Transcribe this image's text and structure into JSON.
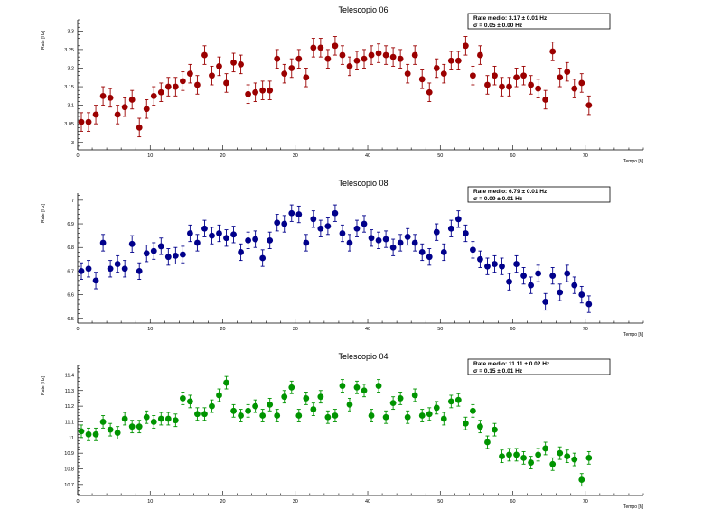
{
  "chart_data": [
    {
      "type": "scatter",
      "title": "Telescopio 06",
      "xlabel": "Tempo [h]",
      "ylabel": "Rate [Hz]",
      "xlim": [
        0,
        78
      ],
      "ylim": [
        2.98,
        3.33
      ],
      "xticks": [
        0,
        10,
        20,
        30,
        40,
        50,
        60,
        70
      ],
      "yticks": [
        3,
        3.05,
        3.1,
        3.15,
        3.2,
        3.25,
        3.3
      ],
      "color": "#9b0000",
      "stats": [
        "Rate medio: 3.17 ± 0.01 Hz",
        "σ = 0.05 ± 0.00 Hz"
      ],
      "x": [
        0.5,
        1.5,
        2.5,
        3.5,
        4.5,
        5.5,
        6.5,
        7.5,
        8.5,
        9.5,
        10.5,
        11.5,
        12.5,
        13.5,
        14.5,
        15.5,
        16.5,
        17.5,
        18.5,
        19.5,
        20.5,
        21.5,
        22.5,
        23.5,
        24.5,
        25.5,
        26.5,
        27.5,
        28.5,
        29.5,
        30.5,
        31.5,
        32.5,
        33.5,
        34.5,
        35.5,
        36.5,
        37.5,
        38.5,
        39.5,
        40.5,
        41.5,
        42.5,
        43.5,
        44.5,
        45.5,
        46.5,
        47.5,
        48.5,
        49.5,
        50.5,
        51.5,
        52.5,
        53.5,
        54.5,
        55.5,
        56.5,
        57.5,
        58.5,
        59.5,
        60.5,
        61.5,
        62.5,
        63.5,
        64.5,
        65.5,
        66.5,
        67.5,
        68.5,
        69.5,
        70.5
      ],
      "y": [
        3.055,
        3.055,
        3.075,
        3.125,
        3.12,
        3.075,
        3.095,
        3.115,
        3.04,
        3.09,
        3.125,
        3.135,
        3.15,
        3.15,
        3.165,
        3.185,
        3.155,
        3.235,
        3.18,
        3.205,
        3.16,
        3.215,
        3.21,
        3.13,
        3.135,
        3.14,
        3.14,
        3.225,
        3.185,
        3.2,
        3.225,
        3.175,
        3.255,
        3.255,
        3.225,
        3.26,
        3.235,
        3.205,
        3.22,
        3.225,
        3.235,
        3.24,
        3.235,
        3.23,
        3.225,
        3.185,
        3.235,
        3.17,
        3.135,
        3.2,
        3.185,
        3.22,
        3.22,
        3.26,
        3.18,
        3.235,
        3.155,
        3.18,
        3.15,
        3.15,
        3.175,
        3.18,
        3.155,
        3.145,
        3.115,
        3.245,
        3.175,
        3.19,
        3.145,
        3.16,
        3.1
      ],
      "err": 0.025
    },
    {
      "type": "scatter",
      "title": "Telescopio 08",
      "xlabel": "Tempo [h]",
      "ylabel": "Rate [Hz]",
      "xlim": [
        0,
        78
      ],
      "ylim": [
        6.48,
        7.03
      ],
      "xticks": [
        0,
        10,
        20,
        30,
        40,
        50,
        60,
        70
      ],
      "yticks": [
        6.5,
        6.6,
        6.7,
        6.8,
        6.9,
        7
      ],
      "color": "#00008b",
      "stats": [
        "Rate medio: 6.79 ± 0.01 Hz",
        "σ = 0.09 ± 0.01 Hz"
      ],
      "x": [
        0.5,
        1.5,
        2.5,
        3.5,
        4.5,
        5.5,
        6.5,
        7.5,
        8.5,
        9.5,
        10.5,
        11.5,
        12.5,
        13.5,
        14.5,
        15.5,
        16.5,
        17.5,
        18.5,
        19.5,
        20.5,
        21.5,
        22.5,
        23.5,
        24.5,
        25.5,
        26.5,
        27.5,
        28.5,
        29.5,
        30.5,
        31.5,
        32.5,
        33.5,
        34.5,
        35.5,
        36.5,
        37.5,
        38.5,
        39.5,
        40.5,
        41.5,
        42.5,
        43.5,
        44.5,
        45.5,
        46.5,
        47.5,
        48.5,
        49.5,
        50.5,
        51.5,
        52.5,
        53.5,
        54.5,
        55.5,
        56.5,
        57.5,
        58.5,
        59.5,
        60.5,
        61.5,
        62.5,
        63.5,
        64.5,
        65.5,
        66.5,
        67.5,
        68.5,
        69.5,
        70.5
      ],
      "y": [
        6.7,
        6.71,
        6.66,
        6.82,
        6.71,
        6.73,
        6.71,
        6.815,
        6.7,
        6.775,
        6.785,
        6.805,
        6.76,
        6.765,
        6.77,
        6.86,
        6.82,
        6.88,
        6.85,
        6.86,
        6.84,
        6.855,
        6.78,
        6.83,
        6.835,
        6.755,
        6.83,
        6.905,
        6.9,
        6.945,
        6.94,
        6.82,
        6.92,
        6.88,
        6.89,
        6.945,
        6.86,
        6.82,
        6.88,
        6.9,
        6.84,
        6.83,
        6.835,
        6.8,
        6.82,
        6.845,
        6.82,
        6.78,
        6.76,
        6.865,
        6.78,
        6.88,
        6.92,
        6.86,
        6.79,
        6.75,
        6.72,
        6.73,
        6.72,
        6.655,
        6.73,
        6.68,
        6.64,
        6.69,
        6.57,
        6.68,
        6.61,
        6.69,
        6.64,
        6.6,
        6.56
      ],
      "err": 0.035
    },
    {
      "type": "scatter",
      "title": "Telescopio 04",
      "xlabel": "Tempo [h]",
      "ylabel": "Rate [Hz]",
      "xlim": [
        0,
        78
      ],
      "ylim": [
        10.63,
        11.46
      ],
      "xticks": [
        0,
        10,
        20,
        30,
        40,
        50,
        60,
        70
      ],
      "yticks": [
        10.7,
        10.8,
        10.9,
        11,
        11.1,
        11.2,
        11.3,
        11.4
      ],
      "color": "#009400",
      "stats": [
        "Rate medio: 11.11 ± 0.02 Hz",
        "σ = 0.15 ± 0.01 Hz"
      ],
      "x": [
        0.5,
        1.5,
        2.5,
        3.5,
        4.5,
        5.5,
        6.5,
        7.5,
        8.5,
        9.5,
        10.5,
        11.5,
        12.5,
        13.5,
        14.5,
        15.5,
        16.5,
        17.5,
        18.5,
        19.5,
        20.5,
        21.5,
        22.5,
        23.5,
        24.5,
        25.5,
        26.5,
        27.5,
        28.5,
        29.5,
        30.5,
        31.5,
        32.5,
        33.5,
        34.5,
        35.5,
        36.5,
        37.5,
        38.5,
        39.5,
        40.5,
        41.5,
        42.5,
        43.5,
        44.5,
        45.5,
        46.5,
        47.5,
        48.5,
        49.5,
        50.5,
        51.5,
        52.5,
        53.5,
        54.5,
        55.5,
        56.5,
        57.5,
        58.5,
        59.5,
        60.5,
        61.5,
        62.5,
        63.5,
        64.5,
        65.5,
        66.5,
        67.5,
        68.5,
        69.5,
        70.5
      ],
      "y": [
        11.04,
        11.02,
        11.02,
        11.1,
        11.05,
        11.03,
        11.12,
        11.07,
        11.07,
        11.13,
        11.1,
        11.12,
        11.12,
        11.11,
        11.25,
        11.23,
        11.15,
        11.15,
        11.2,
        11.27,
        11.35,
        11.17,
        11.14,
        11.17,
        11.2,
        11.14,
        11.21,
        11.14,
        11.26,
        11.32,
        11.14,
        11.25,
        11.18,
        11.26,
        11.13,
        11.14,
        11.33,
        11.21,
        11.32,
        11.3,
        11.14,
        11.33,
        11.13,
        11.22,
        11.25,
        11.13,
        11.27,
        11.14,
        11.15,
        11.19,
        11.12,
        11.23,
        11.24,
        11.09,
        11.17,
        11.07,
        10.97,
        11.05,
        10.88,
        10.89,
        10.89,
        10.87,
        10.84,
        10.89,
        10.93,
        10.83,
        10.9,
        10.88,
        10.86,
        10.73,
        10.87
      ],
      "err": 0.04
    }
  ]
}
